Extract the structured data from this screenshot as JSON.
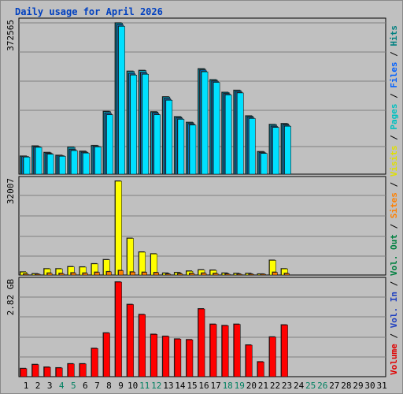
{
  "title": "Daily usage for April 2026",
  "colors": {
    "background": "#c0c0c0",
    "hits": "#00c0e0",
    "files": "#0080ff",
    "pages": "#00e0e0",
    "visits": "#ffff00",
    "sites": "#ff8000",
    "volume": "#ff0000",
    "vol_in": "#0000ff",
    "vol_out": "#00a000",
    "weekend_day": "#008060",
    "weekday": "#000000"
  },
  "right_legend": [
    {
      "text": "Volume",
      "color": "#e00000"
    },
    {
      "text": " / ",
      "color": "#000000"
    },
    {
      "text": "Vol. In",
      "color": "#2040c0"
    },
    {
      "text": " / ",
      "color": "#000000"
    },
    {
      "text": "Vol. Out",
      "color": "#008040"
    },
    {
      "text": " / ",
      "color": "#000000"
    },
    {
      "text": "Sites",
      "color": "#ff8000"
    },
    {
      "text": " / ",
      "color": "#000000"
    },
    {
      "text": "Visits",
      "color": "#e0e000"
    },
    {
      "text": " / ",
      "color": "#000000"
    },
    {
      "text": "Pages",
      "color": "#00c0c0"
    },
    {
      "text": " / ",
      "color": "#000000"
    },
    {
      "text": "Files",
      "color": "#0060ff"
    },
    {
      "text": " / ",
      "color": "#000000"
    },
    {
      "text": "Hits",
      "color": "#008080"
    }
  ],
  "chart_data": [
    {
      "type": "bar",
      "panel": "hits",
      "y_max_label": "372565",
      "ylim": [
        0,
        372565
      ],
      "x": [
        1,
        2,
        3,
        4,
        5,
        6,
        7,
        8,
        9,
        10,
        11,
        12,
        13,
        14,
        15,
        16,
        17,
        18,
        19,
        20,
        21,
        22,
        23,
        24,
        25,
        26,
        27,
        28,
        29,
        30,
        31
      ],
      "weekend_days": [
        4,
        5,
        11,
        12,
        18,
        19,
        25,
        26
      ],
      "series": [
        {
          "values": [
            44000,
            69000,
            53000,
            46000,
            66000,
            56000,
            70000,
            154000,
            372000,
            253000,
            255000,
            153000,
            190000,
            141000,
            127000,
            259000,
            232000,
            201000,
            206000,
            143000,
            55000,
            122000,
            124000,
            0,
            0,
            0,
            0,
            0,
            0,
            0,
            0
          ]
        },
        {
          "values": [
            43000,
            67000,
            51000,
            45000,
            61000,
            54000,
            68000,
            150000,
            368000,
            248000,
            250000,
            150000,
            186000,
            138000,
            124000,
            256000,
            229000,
            198000,
            203000,
            140000,
            53000,
            118000,
            121000,
            0,
            0,
            0,
            0,
            0,
            0,
            0,
            0
          ]
        },
        {
          "values": [
            42000,
            66000,
            49000,
            44000,
            58000,
            52000,
            67000,
            146000,
            364000,
            244000,
            246000,
            146000,
            182000,
            135000,
            121000,
            252000,
            226000,
            195000,
            200000,
            137000,
            51000,
            115000,
            118000,
            0,
            0,
            0,
            0,
            0,
            0,
            0,
            0
          ]
        }
      ]
    },
    {
      "type": "bar",
      "panel": "visits",
      "y_max_label": "32007",
      "ylim": [
        0,
        32007
      ],
      "series": [
        {
          "values": [
            1000,
            400,
            2100,
            2100,
            2800,
            2700,
            3800,
            5200,
            32007,
            12500,
            7800,
            7200,
            600,
            800,
            1300,
            1700,
            1600,
            600,
            500,
            500,
            300,
            5000,
            2100,
            0,
            0,
            0,
            0,
            0,
            0,
            0,
            0
          ]
        },
        {
          "values": [
            300,
            200,
            600,
            500,
            700,
            600,
            900,
            1100,
            1500,
            1000,
            900,
            800,
            300,
            400,
            500,
            600,
            500,
            300,
            200,
            200,
            100,
            900,
            500,
            0,
            0,
            0,
            0,
            0,
            0,
            0,
            0
          ]
        }
      ]
    },
    {
      "type": "bar",
      "panel": "volume",
      "y_max_label": "2.82 GB",
      "ylim": [
        0,
        2.82
      ],
      "series": [
        {
          "values": [
            0.24,
            0.36,
            0.28,
            0.26,
            0.38,
            0.38,
            0.84,
            1.3,
            2.82,
            2.15,
            1.85,
            1.26,
            1.2,
            1.12,
            1.1,
            2.02,
            1.56,
            1.52,
            1.56,
            0.94,
            0.44,
            1.18,
            1.54,
            0,
            0,
            0,
            0,
            0,
            0,
            0,
            0
          ]
        }
      ]
    }
  ]
}
